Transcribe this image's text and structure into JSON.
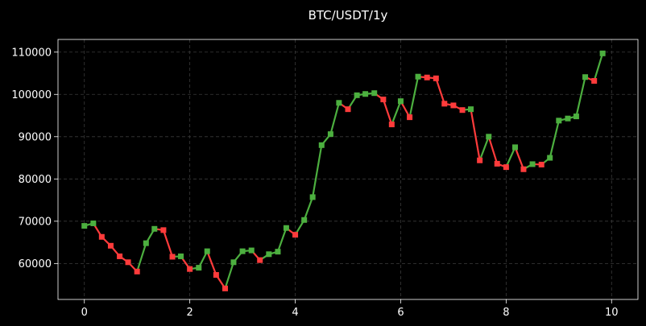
{
  "chart_data": {
    "type": "line",
    "title": "BTC/USDT/1y",
    "xlabel": "",
    "ylabel": "",
    "xlim": [
      -0.5,
      10.5
    ],
    "ylim": [
      51500,
      113000
    ],
    "x_ticks": [
      0,
      2,
      4,
      6,
      8,
      10
    ],
    "y_ticks": [
      60000,
      70000,
      80000,
      90000,
      100000,
      110000
    ],
    "grid": true,
    "legend": "none",
    "colors": {
      "up": "#4caf3f",
      "down": "#ff3b3b",
      "background": "#000000",
      "grid": "#3a3a3a",
      "axis": "#ffffff"
    },
    "marker": "square",
    "points": [
      {
        "x": 0.0,
        "y": 68900
      },
      {
        "x": 0.17,
        "y": 69500
      },
      {
        "x": 0.33,
        "y": 66300
      },
      {
        "x": 0.5,
        "y": 64200
      },
      {
        "x": 0.67,
        "y": 61700
      },
      {
        "x": 0.83,
        "y": 60300
      },
      {
        "x": 1.0,
        "y": 58100
      },
      {
        "x": 1.17,
        "y": 64800
      },
      {
        "x": 1.33,
        "y": 68200
      },
      {
        "x": 1.5,
        "y": 67900
      },
      {
        "x": 1.67,
        "y": 61600
      },
      {
        "x": 1.83,
        "y": 61700
      },
      {
        "x": 2.0,
        "y": 58700
      },
      {
        "x": 2.17,
        "y": 59000
      },
      {
        "x": 2.33,
        "y": 62900
      },
      {
        "x": 2.5,
        "y": 57300
      },
      {
        "x": 2.67,
        "y": 54100
      },
      {
        "x": 2.83,
        "y": 60300
      },
      {
        "x": 3.0,
        "y": 62900
      },
      {
        "x": 3.17,
        "y": 63100
      },
      {
        "x": 3.33,
        "y": 60800
      },
      {
        "x": 3.5,
        "y": 62200
      },
      {
        "x": 3.67,
        "y": 62800
      },
      {
        "x": 3.83,
        "y": 68400
      },
      {
        "x": 4.0,
        "y": 66800
      },
      {
        "x": 4.17,
        "y": 70300
      },
      {
        "x": 4.33,
        "y": 75700
      },
      {
        "x": 4.5,
        "y": 88000
      },
      {
        "x": 4.67,
        "y": 90600
      },
      {
        "x": 4.83,
        "y": 98000
      },
      {
        "x": 5.0,
        "y": 96500
      },
      {
        "x": 5.17,
        "y": 99800
      },
      {
        "x": 5.33,
        "y": 100100
      },
      {
        "x": 5.5,
        "y": 100300
      },
      {
        "x": 5.67,
        "y": 98800
      },
      {
        "x": 5.83,
        "y": 92900
      },
      {
        "x": 6.0,
        "y": 98400
      },
      {
        "x": 6.17,
        "y": 94600
      },
      {
        "x": 6.33,
        "y": 104200
      },
      {
        "x": 6.5,
        "y": 104000
      },
      {
        "x": 6.67,
        "y": 103800
      },
      {
        "x": 6.83,
        "y": 97800
      },
      {
        "x": 7.0,
        "y": 97400
      },
      {
        "x": 7.17,
        "y": 96300
      },
      {
        "x": 7.33,
        "y": 96500
      },
      {
        "x": 7.5,
        "y": 84400
      },
      {
        "x": 7.67,
        "y": 90000
      },
      {
        "x": 7.83,
        "y": 83600
      },
      {
        "x": 8.0,
        "y": 82800
      },
      {
        "x": 8.17,
        "y": 87500
      },
      {
        "x": 8.33,
        "y": 82300
      },
      {
        "x": 8.5,
        "y": 83500
      },
      {
        "x": 8.67,
        "y": 83400
      },
      {
        "x": 8.83,
        "y": 85000
      },
      {
        "x": 9.0,
        "y": 93800
      },
      {
        "x": 9.17,
        "y": 94300
      },
      {
        "x": 9.33,
        "y": 94800
      },
      {
        "x": 9.5,
        "y": 104100
      },
      {
        "x": 9.67,
        "y": 103200
      },
      {
        "x": 9.83,
        "y": 109700
      }
    ]
  }
}
